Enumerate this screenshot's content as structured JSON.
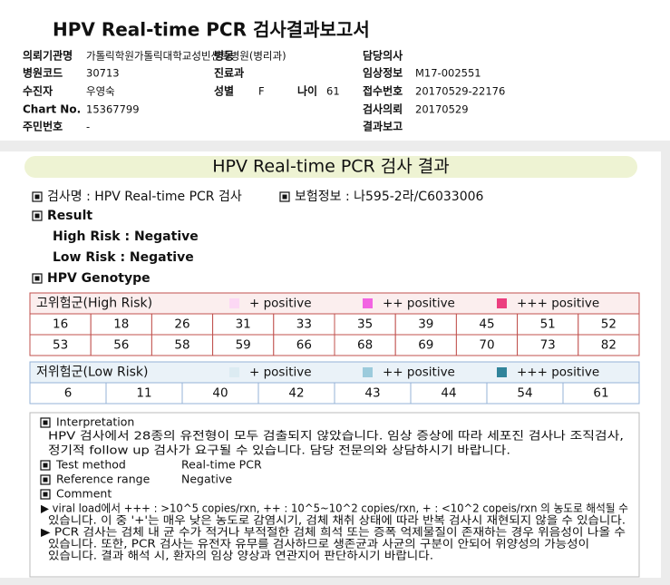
{
  "header": {
    "title": "HPV Real-time PCR 검사결과보고서",
    "fields": {
      "institution": {
        "label": "의뢰기관명",
        "value": "가톨릭학원가톨릭대학교성빈센트병원(병리과)"
      },
      "ward": {
        "label": "병동"
      },
      "doctor": {
        "label": "담당의사"
      },
      "hospital_code": {
        "label": "병원코드",
        "value": "30713"
      },
      "department": {
        "label": "진료과"
      },
      "clinical_info": {
        "label": "임상정보",
        "value": "M17-002551"
      },
      "patient": {
        "label": "수진자",
        "value": "우영숙"
      },
      "sex": {
        "label": "성별",
        "value": "F"
      },
      "age": {
        "label": "나이",
        "value": "61"
      },
      "receipt_no": {
        "label": "접수번호",
        "value": "20170529-22176"
      },
      "chart_no": {
        "label": "Chart No.",
        "value": "15367799"
      },
      "request_date": {
        "label": "검사의뢰",
        "value": "20170529"
      },
      "resident_no": {
        "label": "주민번호",
        "value": "-"
      },
      "report": {
        "label": "결과보고"
      }
    }
  },
  "result": {
    "title": "HPV Real-time PCR 검사 결과",
    "test_name": "검사명 : HPV Real-time PCR 검사",
    "insurance": "보험정보 : 나595-2라/C6033006",
    "result_heading": "Result",
    "high_risk": "High Risk : Negative",
    "low_risk": "Low Risk : Negative",
    "genotype_heading": "HPV Genotype",
    "high_risk_table": {
      "title": "고위험군(High Risk)",
      "legend": [
        "+ positive",
        "++ positive",
        "+++ positive"
      ],
      "rows": [
        [
          "16",
          "18",
          "26",
          "31",
          "33",
          "35",
          "39",
          "45",
          "51",
          "52"
        ],
        [
          "53",
          "56",
          "58",
          "59",
          "66",
          "68",
          "69",
          "70",
          "73",
          "82"
        ]
      ]
    },
    "low_risk_table": {
      "title": "저위험군(Low Risk)",
      "legend": [
        "+ positive",
        "++ positive",
        "+++ positive"
      ],
      "rows": [
        [
          "6",
          "11",
          "40",
          "42",
          "43",
          "44",
          "54",
          "61"
        ]
      ]
    },
    "interpretation": {
      "heading": "Interpretation",
      "lines": [
        "HPV 검사에서 28종의 유전형이 모두 검출되지  않았습니다. 임상 증상에 따라 세포진 검사나 조직검사,",
        "정기적 follow up 검사가 요구될 수 있습니다. 담당 전문의와 상담하시기 바랍니다."
      ],
      "test_method": {
        "label": "Test method",
        "value": "Real-time PCR"
      },
      "reference_range": {
        "label": "Reference range",
        "value": "Negative"
      },
      "comment_heading": "Comment",
      "comment_lines": [
        "▶ viral load에서 +++ : >10^5 copies/rxn, ++ : 10^5~10^2 copies/rxn, + : <10^2 copeis/rxn 의 농도로 해석될 수",
        "있습니다. 이 중 '+'는 매우 낮은 농도로 감염시기, 검체 채취 상태에 따라 반복 검사시 재현되지 않을 수 있습니다.",
        "▶ PCR 검사는 검체 내 균 수가 적거나 부적절한 검체 희석 또는 증폭 억제물질이 존재하는 경우 위음성이 나올 수",
        "있습니다. 또한, PCR 검사는 유전자 유무를 검사하므로 생존균과 사균의 구분이 안되어 위양성의 가능성이",
        "있습니다. 결과 해석 시, 환자의 임상 양상과 연관지어 판단하시기 바랍니다."
      ]
    }
  }
}
